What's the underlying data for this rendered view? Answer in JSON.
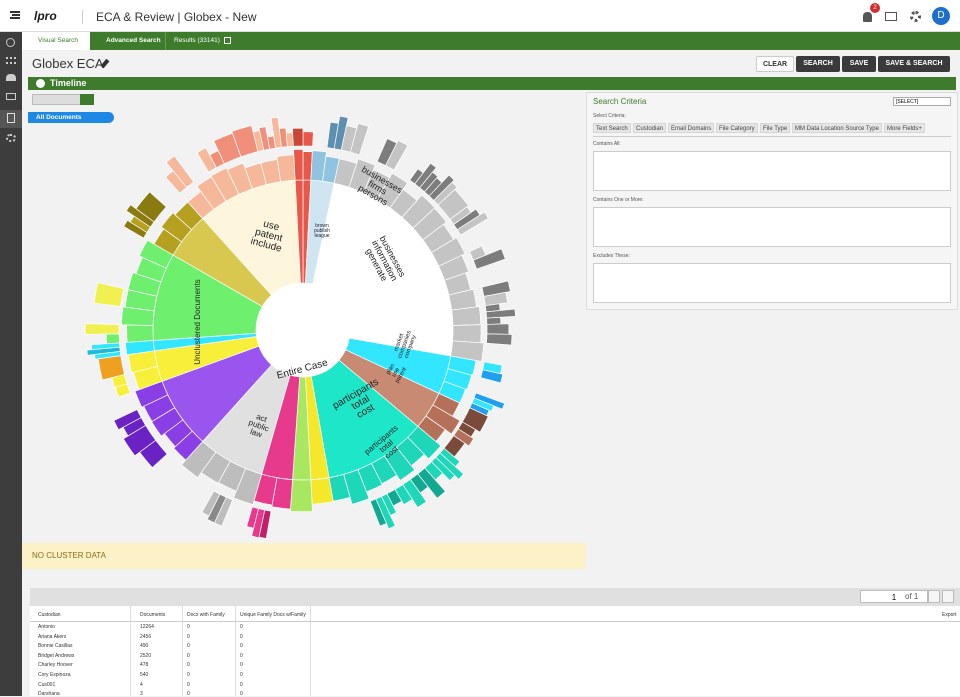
{
  "header": {
    "brand": "lpro",
    "title": "ECA & Review | Globex - New",
    "badge": "2",
    "avatar": "D"
  },
  "tabs": [
    "Visual Search",
    "Advanced Search",
    "Results (33141)"
  ],
  "page_title": "Globex ECA",
  "buttons": [
    "CLEAR",
    "SEARCH",
    "SAVE",
    "SAVE & SEARCH"
  ],
  "section": "Timeline",
  "breadcrumb": "All Documents",
  "sunburst_labels": [
    [
      "use",
      "patent",
      "include"
    ],
    [
      "businesses",
      "firms",
      "persons"
    ],
    [
      "businesses",
      "information",
      "generate"
    ],
    [
      "Unclustered Documents"
    ],
    [
      "Entire Case"
    ],
    [
      "participants",
      "total",
      "cost"
    ],
    [
      "participants",
      "total",
      "cost"
    ],
    [
      "act",
      "public",
      "law"
    ],
    [
      "market",
      "companies",
      "company"
    ],
    [
      "plan",
      "use",
      "patent"
    ],
    [
      "brown",
      "publish",
      "league"
    ]
  ],
  "no_cluster": "NO CLUSTER DATA",
  "search_panel": {
    "title": "Search Criteria",
    "select": "[SELECT]",
    "select_label": "Select Criteria:",
    "criteria_tabs": [
      "Text Search",
      "Custodian",
      "Email Domains",
      "File Category",
      "File Type",
      "MM Data Location Source Type",
      "More Fields+"
    ],
    "boxes": [
      "Contains All:",
      "Contains One or More:",
      "Excludes These:"
    ]
  },
  "pager": {
    "page": "1",
    "of": "of 1",
    "export": "Export"
  },
  "table": {
    "headers": [
      "Custodian",
      "Documents",
      "Docs with Family",
      "Unique Family Docs w/Family"
    ],
    "rows": [
      [
        "Antonio",
        12264,
        0,
        0
      ],
      [
        "Ariana Akers",
        2456,
        0,
        0
      ],
      [
        "Bonnie Casillas",
        490,
        0,
        0
      ],
      [
        "Bridget Andrews",
        2520,
        0,
        0
      ],
      [
        "Charley Hoover",
        478,
        0,
        0
      ],
      [
        "Cory Espinoza",
        540,
        0,
        0
      ],
      [
        "Cus001",
        4,
        0,
        0
      ],
      [
        "Darshana",
        3,
        0,
        0
      ]
    ]
  }
}
